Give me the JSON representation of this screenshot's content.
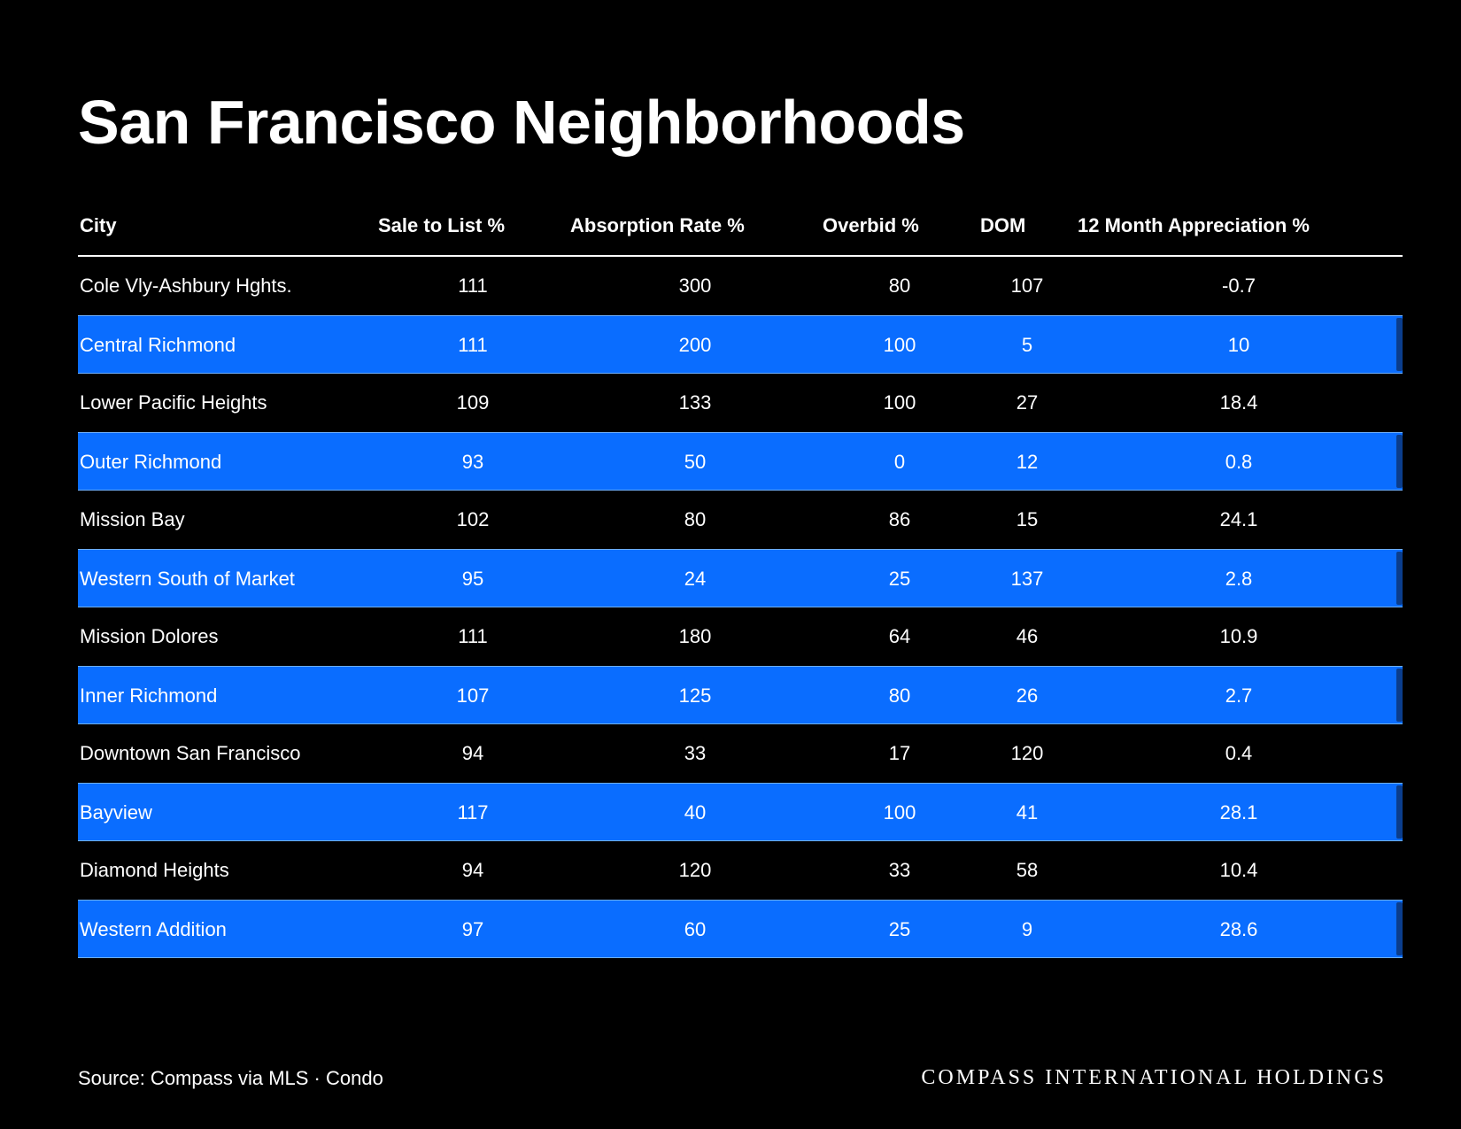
{
  "title": "San Francisco Neighborhoods",
  "chart_data": {
    "type": "table",
    "title": "San Francisco Neighborhoods",
    "columns": [
      "City",
      "Sale to List %",
      "Absorption Rate %",
      "Overbid %",
      "DOM",
      "12 Month Appreciation %"
    ],
    "rows": [
      [
        "Cole Vly-Ashbury Hghts.",
        "111",
        "300",
        "80",
        "107",
        "-0.7"
      ],
      [
        "Central Richmond",
        "111",
        "200",
        "100",
        "5",
        "10"
      ],
      [
        "Lower Pacific Heights",
        "109",
        "133",
        "100",
        "27",
        "18.4"
      ],
      [
        "Outer Richmond",
        "93",
        "50",
        "0",
        "12",
        "0.8"
      ],
      [
        "Mission Bay",
        "102",
        "80",
        "86",
        "15",
        "24.1"
      ],
      [
        "Western South of Market",
        "95",
        "24",
        "25",
        "137",
        "2.8"
      ],
      [
        "Mission Dolores",
        "111",
        "180",
        "64",
        "46",
        "10.9"
      ],
      [
        "Inner Richmond",
        "107",
        "125",
        "80",
        "26",
        "2.7"
      ],
      [
        "Downtown San Francisco",
        "94",
        "33",
        "17",
        "120",
        "0.4"
      ],
      [
        "Bayview",
        "117",
        "40",
        "100",
        "41",
        "28.1"
      ],
      [
        "Diamond Heights",
        "94",
        "120",
        "33",
        "58",
        "10.4"
      ],
      [
        "Western Addition",
        "97",
        "60",
        "25",
        "9",
        "28.6"
      ]
    ],
    "row_colors": [
      "#000000",
      "#0a6dff"
    ]
  },
  "footer": {
    "source": "Source: Compass via MLS · Condo",
    "brand": "COMPASS INTERNATIONAL HOLDINGS"
  }
}
